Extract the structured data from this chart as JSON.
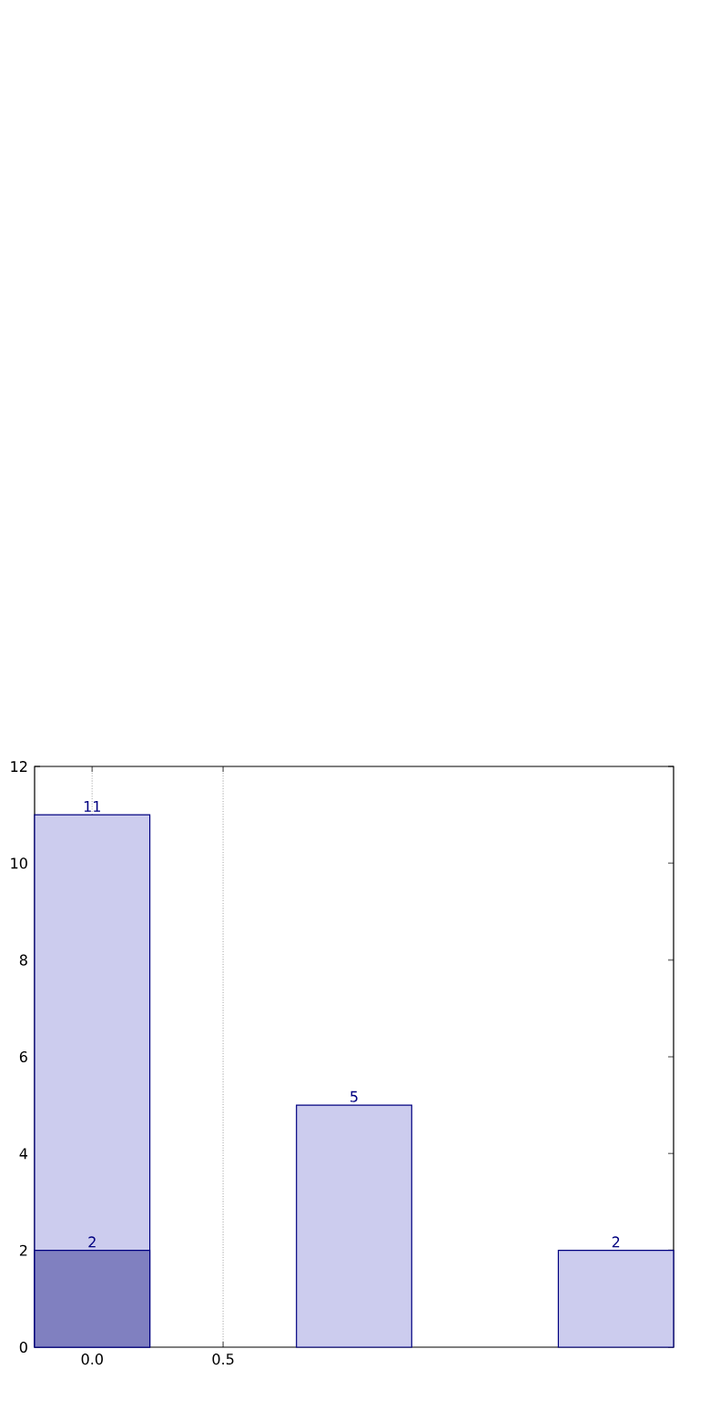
{
  "chart_data": {
    "type": "bar",
    "x": [
      0,
      1,
      2
    ],
    "series": [
      {
        "color": "#ccccee",
        "values": [
          11,
          5,
          2
        ]
      },
      {
        "color": "#8080c0",
        "values": [
          2,
          null,
          null
        ]
      }
    ],
    "xlim": [
      -0.22,
      2.22
    ],
    "xticks": [
      {
        "value": 0,
        "label": "0.0"
      },
      {
        "value": 0.5,
        "label": "0.5"
      }
    ],
    "ylim": [
      0,
      12
    ],
    "yticks": [
      0,
      2,
      4,
      6,
      8,
      10,
      12
    ],
    "grid": "x",
    "data_labels": true
  }
}
